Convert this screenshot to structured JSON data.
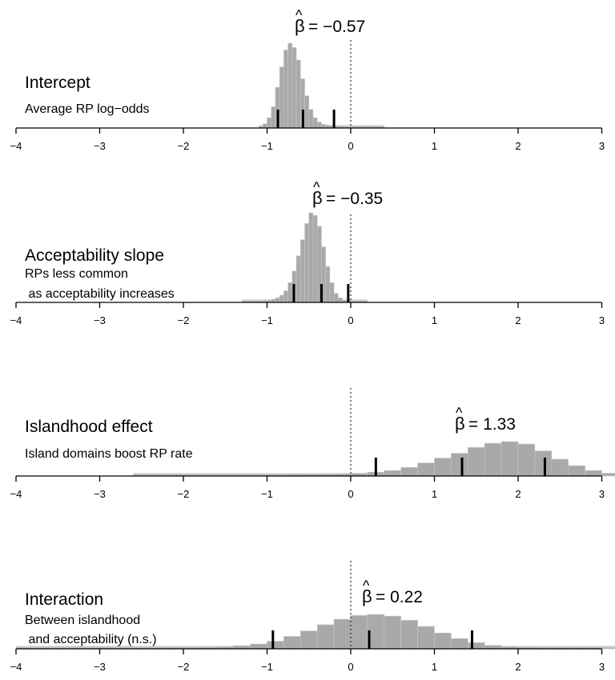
{
  "chart_data": [
    {
      "type": "histogram",
      "title": "Intercept",
      "subtitle_lines": [
        "Average RP log−odds"
      ],
      "estimate_label": "= −0.57",
      "estimate": -0.57,
      "interval": [
        -0.87,
        -0.57,
        -0.2
      ],
      "support": [
        -1.1,
        0.4
      ],
      "bins": {
        "start": -1.1,
        "width": 0.05,
        "counts": [
          0.02,
          0.05,
          0.12,
          0.25,
          0.48,
          0.72,
          0.92,
          1.0,
          0.95,
          0.8,
          0.58,
          0.38,
          0.22,
          0.12,
          0.07,
          0.045,
          0.035,
          0.028,
          0.022,
          0.018,
          0.015,
          0.013,
          0.012,
          0.011,
          0.01,
          0.009,
          0.008,
          0.007,
          0.006,
          0.006
        ]
      },
      "xlim": [
        -4,
        3
      ],
      "xticks": [
        "−4",
        "−3",
        "−2",
        "−1",
        "0",
        "1",
        "2",
        "3"
      ],
      "reference_line": 0
    },
    {
      "type": "histogram",
      "title": "Acceptability slope",
      "subtitle_lines": [
        "RPs less common",
        " as acceptability increases"
      ],
      "estimate_label": "= −0.35",
      "estimate": -0.35,
      "interval": [
        -0.68,
        -0.35,
        -0.03
      ],
      "support": [
        -1.3,
        0.2
      ],
      "bins": {
        "start": -1.3,
        "width": 0.05,
        "counts": [
          0.01,
          0.01,
          0.012,
          0.014,
          0.016,
          0.02,
          0.025,
          0.035,
          0.05,
          0.08,
          0.13,
          0.22,
          0.35,
          0.52,
          0.7,
          0.88,
          1.0,
          0.97,
          0.85,
          0.62,
          0.4,
          0.22,
          0.1,
          0.05,
          0.025,
          0.015,
          0.01,
          0.008,
          0.006,
          0.005
        ]
      },
      "xlim": [
        -4,
        3
      ],
      "xticks": [
        "−4",
        "−3",
        "−2",
        "−1",
        "0",
        "1",
        "2",
        "3"
      ],
      "reference_line": 0
    },
    {
      "type": "histogram",
      "title": "Islandhood effect",
      "subtitle_lines": [
        "Island domains boost RP rate"
      ],
      "estimate_label": "= 1.33",
      "estimate": 1.33,
      "interval": [
        0.3,
        1.33,
        2.32
      ],
      "support": [
        -2.6,
        3.2
      ],
      "bins": {
        "start": -2.6,
        "width": 0.2,
        "counts": [
          0.02,
          0.02,
          0.022,
          0.024,
          0.026,
          0.028,
          0.03,
          0.033,
          0.036,
          0.04,
          0.045,
          0.05,
          0.06,
          0.08,
          0.11,
          0.16,
          0.25,
          0.38,
          0.52,
          0.66,
          0.83,
          0.95,
          1.0,
          0.93,
          0.73,
          0.49,
          0.3,
          0.16,
          0.08
        ]
      },
      "xlim": [
        -4,
        3
      ],
      "xticks": [
        "−4",
        "−3",
        "−2",
        "−1",
        "0",
        "1",
        "2",
        "3"
      ],
      "reference_line": 0
    },
    {
      "type": "histogram",
      "title": "Interaction",
      "subtitle_lines": [
        "Between islandhood",
        " and acceptability (n.s.)"
      ],
      "estimate_label": "= 0.22",
      "estimate": 0.22,
      "interval": [
        -0.93,
        0.22,
        1.45
      ],
      "support": [
        -4,
        3.2
      ],
      "bins": {
        "start": -4.0,
        "width": 0.2,
        "counts": [
          0.01,
          0.01,
          0.011,
          0.012,
          0.013,
          0.014,
          0.015,
          0.017,
          0.02,
          0.025,
          0.03,
          0.04,
          0.06,
          0.09,
          0.14,
          0.22,
          0.36,
          0.52,
          0.7,
          0.86,
          0.97,
          1.0,
          0.95,
          0.83,
          0.65,
          0.46,
          0.3,
          0.18,
          0.1,
          0.06,
          0.04,
          0.03,
          0.025,
          0.02,
          0.015,
          0.012
        ]
      },
      "xlim": [
        -4,
        3
      ],
      "xticks": [
        "−4",
        "−3",
        "−2",
        "−1",
        "0",
        "1",
        "2",
        "3"
      ],
      "reference_line": 0
    }
  ],
  "colors": {
    "bar_fill": "#a9a9a9",
    "bar_edge": "#c8c8c8",
    "axis": "#000000",
    "ticks": "#000000"
  }
}
